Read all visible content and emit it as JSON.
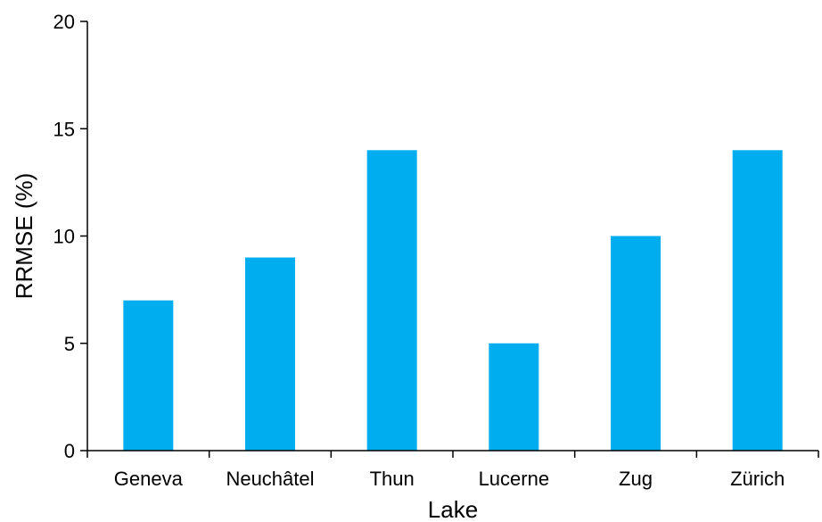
{
  "chart_data": {
    "type": "bar",
    "categories": [
      "Geneva",
      "Neuchâtel",
      "Thun",
      "Lucerne",
      "Zug",
      "Zürich"
    ],
    "values": [
      7,
      9,
      14,
      5,
      10,
      14
    ],
    "xlabel": "Lake",
    "ylabel": "RRMSE (%)",
    "ylim": [
      0,
      20
    ],
    "yticks": [
      0,
      5,
      10,
      15,
      20
    ],
    "grid": false,
    "legend": "none",
    "bar_color": "#00AEEF"
  }
}
